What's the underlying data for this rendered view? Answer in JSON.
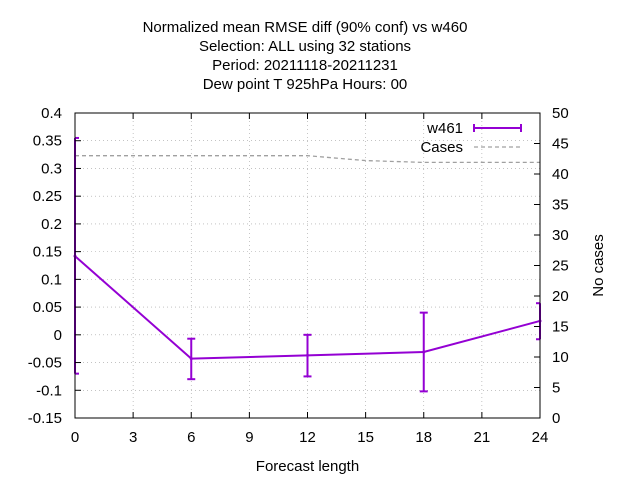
{
  "chart_data": {
    "type": "line",
    "title_lines": [
      "Normalized mean RMSE diff (90% conf) vs w460",
      "Selection: ALL using    32 stations",
      "Period: 20211118-20211231",
      "Dew point T 925hPa   Hours:  00"
    ],
    "xlabel": "Forecast length",
    "ylabel": "",
    "y2label": "No cases",
    "xlim": [
      0,
      24
    ],
    "ylim": [
      -0.15,
      0.4
    ],
    "y2lim": [
      0,
      50
    ],
    "xticks": [
      0,
      3,
      6,
      9,
      12,
      15,
      18,
      21,
      24
    ],
    "xtick_labels": [
      "0",
      "3",
      "6",
      "9",
      "12",
      "15",
      "18",
      "21",
      "24"
    ],
    "yticks": [
      -0.15,
      -0.1,
      -0.05,
      0,
      0.05,
      0.1,
      0.15,
      0.2,
      0.25,
      0.3,
      0.35,
      0.4
    ],
    "ytick_labels": [
      "-0.15",
      "-0.1",
      "-0.05",
      "0",
      "0.05",
      "0.1",
      "0.15",
      "0.2",
      "0.25",
      "0.3",
      "0.35",
      "0.4"
    ],
    "y2ticks": [
      0,
      5,
      10,
      15,
      20,
      25,
      30,
      35,
      40,
      45,
      50
    ],
    "y2tick_labels": [
      "0",
      "5",
      "10",
      "15",
      "20",
      "25",
      "30",
      "35",
      "40",
      "45",
      "50"
    ],
    "grid": true,
    "legend_position": "top-right",
    "series": [
      {
        "name": "w461",
        "axis": "left",
        "style": "line-errorbars",
        "color": "#9400d3",
        "x": [
          0,
          6,
          12,
          18,
          24
        ],
        "y": [
          0.142,
          -0.043,
          -0.037,
          -0.031,
          0.025
        ],
        "err_low": [
          -0.07,
          -0.08,
          -0.075,
          -0.102,
          -0.008
        ],
        "err_high": [
          0.355,
          -0.007,
          0.0,
          0.04,
          0.057
        ]
      },
      {
        "name": "Cases",
        "axis": "right",
        "style": "dashed",
        "color": "#a0a0a0",
        "x": [
          0,
          6,
          12,
          15,
          18,
          24
        ],
        "y": [
          43,
          43,
          43,
          42.2,
          41.9,
          41.9
        ]
      }
    ]
  }
}
